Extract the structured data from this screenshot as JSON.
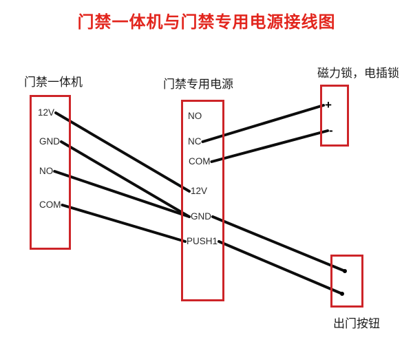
{
  "title": "门禁一体机与门禁专用电源接线图",
  "colors": {
    "title_red": "#e2251d",
    "box_border_red": "#cd2428",
    "wire_black": "#0d0d0d"
  },
  "reader": {
    "label": "门禁一体机",
    "terminals": {
      "v12": "12V",
      "gnd": "GND",
      "no": "NO",
      "com": "COM"
    }
  },
  "psu": {
    "label": "门禁专用电源",
    "terminals": {
      "no": "NO",
      "nc": "NC",
      "com": "COM",
      "v12": "12V",
      "gnd": "GND",
      "push1": "PUSH1"
    }
  },
  "lock": {
    "label": "磁力锁，电插锁",
    "terminals": {
      "plus": "+",
      "minus": "-"
    }
  },
  "button": {
    "label": "出门按钮"
  },
  "connections": [
    {
      "from": "reader-v12",
      "fromSide": "right",
      "to": "psu-v12",
      "toSide": "left"
    },
    {
      "from": "reader-gnd",
      "fromSide": "right",
      "to": "psu-gnd",
      "toSide": "left"
    },
    {
      "from": "reader-no",
      "fromSide": "right",
      "to": "psu-gnd",
      "toSide": "left"
    },
    {
      "from": "reader-com",
      "fromSide": "right",
      "to": "psu-push1",
      "toSide": "left"
    },
    {
      "from": "psu-nc",
      "fromSide": "right",
      "to": "lock-plus",
      "toSide": "left"
    },
    {
      "from": "psu-com",
      "fromSide": "right",
      "to": "lock-minus",
      "toSide": "left"
    },
    {
      "from": "psu-gnd",
      "fromSide": "right",
      "to": "btn-dot1",
      "toSide": "center"
    },
    {
      "from": "psu-push1",
      "fromSide": "right",
      "to": "btn-dot2",
      "toSide": "center"
    }
  ]
}
